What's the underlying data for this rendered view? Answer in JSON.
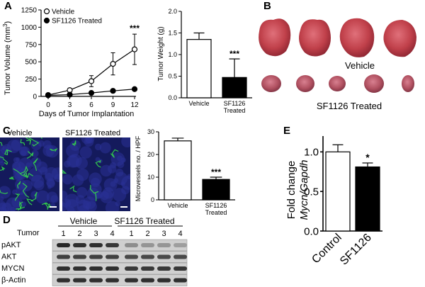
{
  "panel_labels": {
    "A": "A",
    "B": "B",
    "C": "C",
    "D": "D",
    "E": "E"
  },
  "colors": {
    "vehicle_fill": "#ffffff",
    "treated_fill": "#000000",
    "micro_bg": "#1a1f6e",
    "vessel": "#34d84a",
    "tumor": "#c0404a"
  },
  "chart_data": [
    {
      "id": "tumor-volume",
      "type": "line",
      "title": "",
      "xlabel": "Days of Tumor Implantation",
      "ylabel": "Tumor Volume (mm",
      "ylabel_sup": "3",
      "ylabel_close": ")",
      "x": [
        0,
        3,
        6,
        9,
        12
      ],
      "xticks": [
        "0",
        "3",
        "6",
        "9",
        "12"
      ],
      "yticks": [
        "0",
        "250",
        "500",
        "750",
        "1000",
        "1250"
      ],
      "ylim": [
        0,
        1250
      ],
      "series": [
        {
          "name": "Vehicle",
          "values": [
            20,
            90,
            220,
            470,
            680
          ],
          "errors": [
            15,
            25,
            80,
            160,
            220
          ],
          "marker": "open-circle"
        },
        {
          "name": "SF1126 Treated",
          "values": [
            15,
            25,
            50,
            80,
            105
          ],
          "errors": [
            5,
            8,
            10,
            12,
            15
          ],
          "marker": "filled-circle"
        }
      ],
      "annotations": [
        {
          "x": 12,
          "text": "***"
        }
      ],
      "legend": "top-left"
    },
    {
      "id": "tumor-weight",
      "type": "bar",
      "title": "",
      "ylabel": "Tumor Weight (g)",
      "categories": [
        "Vehicle",
        "SF1126 Treated"
      ],
      "category_lines": [
        [
          "Vehicle"
        ],
        [
          "SF1126",
          "Treated"
        ]
      ],
      "values": [
        1.35,
        0.47
      ],
      "errors": [
        0.15,
        0.43
      ],
      "yticks": [
        "0.0",
        "0.5",
        "1.0",
        "1.5",
        "2.0"
      ],
      "ylim": [
        0,
        2.0
      ],
      "annotations": [
        {
          "category": 1,
          "text": "***"
        }
      ]
    },
    {
      "id": "microvessels",
      "type": "bar",
      "title": "",
      "ylabel": "Microvessels no. / HPF",
      "categories": [
        "Vehicle",
        "SF1126 Treated"
      ],
      "category_lines": [
        [
          "Vehicle"
        ],
        [
          "SF1126",
          "Treated"
        ]
      ],
      "values": [
        26,
        9
      ],
      "errors": [
        1.2,
        1.0
      ],
      "yticks": [
        "0",
        "10",
        "20",
        "30"
      ],
      "ylim": [
        0,
        30
      ],
      "annotations": [
        {
          "category": 1,
          "text": "***"
        }
      ]
    },
    {
      "id": "fold-change",
      "type": "bar",
      "title": "",
      "ylabel": "Fold change",
      "ylabel2": "Mycn/Gapdh",
      "categories": [
        "Control",
        "SF1126"
      ],
      "values": [
        1.0,
        0.81
      ],
      "errors": [
        0.09,
        0.05
      ],
      "yticks": [
        "0.0",
        "0.5",
        "1.0"
      ],
      "ylim": [
        0,
        1.2
      ],
      "annotations": [
        {
          "category": 1,
          "text": "*"
        }
      ]
    }
  ],
  "panel_b": {
    "vehicle_label": "Vehicle",
    "treated_label": "SF1126  Treated"
  },
  "panel_c": {
    "vehicle_label": "Vehicle",
    "treated_label": "SF1126 Treated"
  },
  "panel_d": {
    "group_vehicle": "Vehicle",
    "group_treated": "SF1126 Treated",
    "tumor_label": "Tumor",
    "lanes": [
      "1",
      "2",
      "3",
      "4",
      "1",
      "2",
      "3",
      "4"
    ],
    "rows": [
      "pAKT",
      "AKT",
      "MYCN",
      "β-Actin"
    ]
  }
}
